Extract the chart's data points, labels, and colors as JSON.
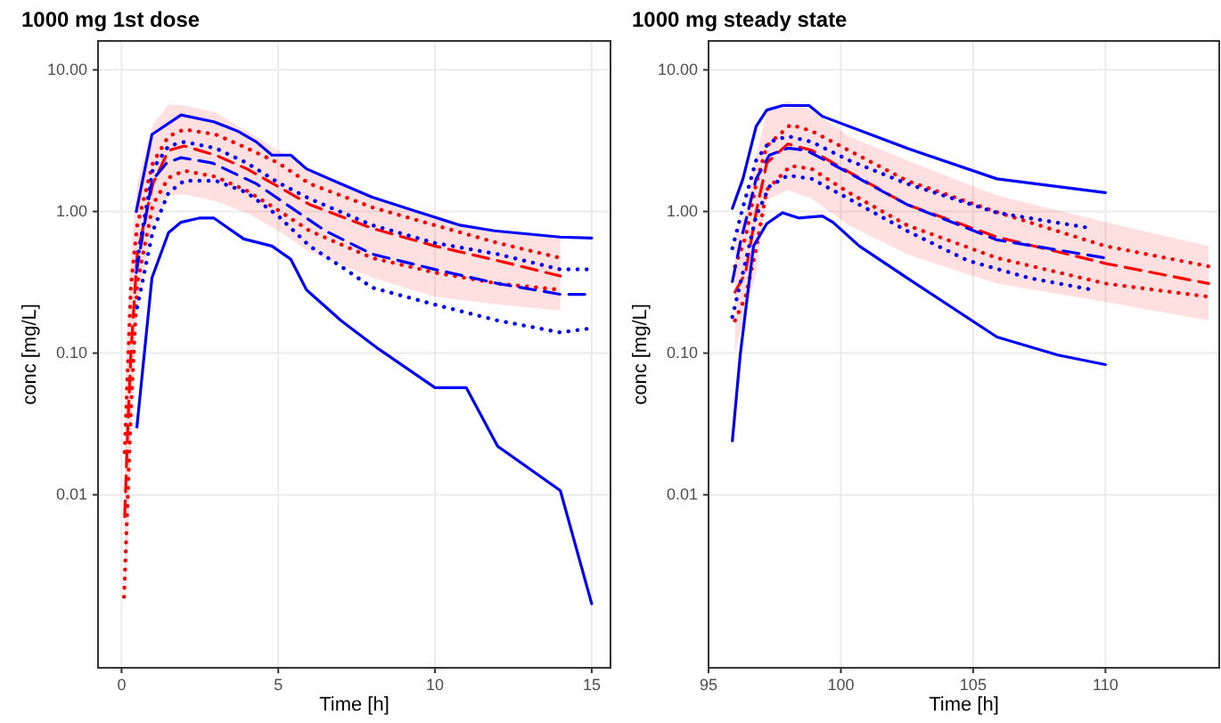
{
  "chart_data": [
    {
      "type": "line",
      "title": "1000 mg 1st dose",
      "xlabel": "Time [h]",
      "ylabel": "conc [mg/L]",
      "log": "y",
      "grid": true,
      "xlim": [
        -0.75,
        15.6
      ],
      "xticks": [
        0,
        5,
        10,
        15
      ],
      "ylim": [
        0.0006,
        16
      ],
      "yticks": [
        0.01,
        {
          "value": 0.1,
          "label": "0.10"
        },
        {
          "value": 1,
          "label": "1.00"
        },
        {
          "value": 10,
          "label": "10.00"
        }
      ],
      "series": [
        {
          "color": "#ff0000",
          "line_style": "dashed",
          "x": [
            0.1,
            0.2,
            0.3,
            0.5,
            1,
            1.5,
            2,
            3,
            4,
            5,
            6,
            8,
            10,
            12,
            14
          ],
          "values": [
            0.007,
            0.03,
            0.1,
            0.5,
            1.57,
            2.7,
            2.9,
            2.5,
            2.0,
            1.5,
            1.12,
            0.76,
            0.57,
            0.45,
            0.35
          ],
          "upper": [
            0.05,
            0.2,
            0.5,
            1.57,
            4.1,
            5.7,
            5.6,
            5.0,
            3.7,
            2.7,
            2.0,
            1.23,
            0.88,
            0.73,
            0.66
          ],
          "lower": [
            0.0015,
            0.004,
            0.02,
            0.21,
            0.8,
            1.3,
            1.32,
            1.18,
            0.98,
            0.73,
            0.52,
            0.34,
            0.25,
            0.22,
            0.2
          ]
        },
        {
          "color": "#ff0000",
          "line_style": "dotted",
          "x": [
            0.1,
            0.3,
            0.5,
            1,
            1.5,
            2,
            3,
            4,
            5,
            6,
            8,
            10,
            12,
            14
          ],
          "values": [
            0.02,
            0.3,
            0.8,
            2.2,
            3.4,
            3.8,
            3.5,
            2.8,
            2.2,
            1.57,
            1.07,
            0.8,
            0.6,
            0.47
          ]
        },
        {
          "color": "#ff0000",
          "line_style": "dotted",
          "x": [
            0.08,
            0.3,
            0.5,
            1,
            1.5,
            2,
            3,
            4,
            5,
            6,
            8,
            10,
            12,
            14
          ],
          "values": [
            0.0019,
            0.04,
            0.31,
            1.12,
            1.73,
            1.94,
            1.76,
            1.4,
            1.02,
            0.73,
            0.47,
            0.37,
            0.31,
            0.28
          ]
        },
        {
          "color": "#0000ff",
          "line_style": "solid",
          "x": [
            0.47,
            0.97,
            1.9,
            2.94,
            3.7,
            4.3,
            4.8,
            5.4,
            5.9,
            6.9,
            8.0,
            9.3,
            10.8,
            11.9,
            14,
            15
          ],
          "values": [
            1.0,
            3.5,
            4.8,
            4.3,
            3.7,
            3.1,
            2.5,
            2.5,
            2.0,
            1.6,
            1.26,
            1.02,
            0.8,
            0.73,
            0.66,
            0.65
          ]
        },
        {
          "color": "#0000ff",
          "line_style": "solid",
          "x": [
            0.49,
            0.97,
            1.5,
            1.9,
            2.5,
            2.94,
            3.9,
            4.8,
            5.4,
            5.9,
            7.0,
            8.2,
            10,
            11,
            12,
            14,
            15
          ],
          "values": [
            0.03,
            0.34,
            0.71,
            0.84,
            0.9,
            0.9,
            0.64,
            0.57,
            0.46,
            0.28,
            0.17,
            0.107,
            0.057,
            0.057,
            0.022,
            0.0107,
            0.0017
          ]
        },
        {
          "color": "#0000ff",
          "line_style": "dashed",
          "x": [
            0.47,
            0.97,
            1.44,
            1.9,
            2.9,
            4.3,
            5.4,
            6.5,
            8,
            10,
            12,
            14,
            15
          ],
          "values": [
            0.37,
            1.65,
            2.2,
            2.4,
            2.2,
            1.57,
            1.07,
            0.73,
            0.5,
            0.39,
            0.31,
            0.26,
            0.26
          ]
        },
        {
          "color": "#0000ff",
          "line_style": "dotted",
          "x": [
            0.5,
            1,
            1.5,
            2,
            3,
            4,
            5,
            6,
            8,
            10,
            12,
            14,
            15
          ],
          "values": [
            0.45,
            2.0,
            2.9,
            3.1,
            2.8,
            2.2,
            1.6,
            1.23,
            0.8,
            0.6,
            0.5,
            0.39,
            0.39
          ]
        },
        {
          "color": "#0000ff",
          "line_style": "dotted",
          "x": [
            0.5,
            1,
            1.5,
            2,
            3,
            4,
            5,
            6,
            7,
            8,
            10,
            12,
            14,
            15
          ],
          "values": [
            0.21,
            0.73,
            1.36,
            1.65,
            1.65,
            1.36,
            0.93,
            0.57,
            0.41,
            0.29,
            0.22,
            0.17,
            0.14,
            0.15
          ]
        }
      ]
    },
    {
      "type": "line",
      "title": "1000 mg steady state",
      "xlabel": "Time [h]",
      "ylabel": "conc [mg/L]",
      "log": "y",
      "grid": true,
      "xlim": [
        95,
        114.3
      ],
      "xticks": [
        95,
        100,
        105,
        110
      ],
      "ylim": [
        0.0006,
        16
      ],
      "yticks": [
        0.01,
        {
          "value": 0.1,
          "label": "0.10"
        },
        {
          "value": 1,
          "label": "1.00"
        },
        {
          "value": 10,
          "label": "10.00"
        }
      ],
      "series": [
        {
          "color": "#ff0000",
          "line_style": "dashed",
          "x": [
            96,
            96.4,
            96.8,
            97.2,
            98,
            98.9,
            100.3,
            102.5,
            105.9,
            110,
            113.9
          ],
          "values": [
            0.27,
            0.37,
            0.99,
            2.2,
            3.0,
            2.7,
            1.9,
            1.12,
            0.66,
            0.43,
            0.31
          ],
          "upper": [
            0.66,
            1.0,
            2.5,
            5.0,
            6.0,
            5.2,
            3.4,
            2.3,
            1.3,
            0.84,
            0.57
          ],
          "lower": [
            0.1,
            0.2,
            0.37,
            1.2,
            1.42,
            1.23,
            0.8,
            0.5,
            0.31,
            0.23,
            0.17
          ]
        },
        {
          "color": "#ff0000",
          "line_style": "dotted",
          "x": [
            96,
            96.4,
            96.8,
            97.2,
            98.1,
            98.9,
            100.3,
            102.5,
            105.9,
            110,
            113.9
          ],
          "values": [
            0.41,
            0.66,
            1.57,
            2.9,
            4.1,
            3.7,
            2.7,
            1.65,
            0.99,
            0.57,
            0.41
          ]
        },
        {
          "color": "#ff0000",
          "line_style": "dotted",
          "x": [
            96,
            96.4,
            96.8,
            97.2,
            98.1,
            98.9,
            100.3,
            102.5,
            105.9,
            110,
            113.9
          ],
          "values": [
            0.17,
            0.25,
            0.55,
            1.42,
            2.1,
            2.0,
            1.36,
            0.8,
            0.47,
            0.31,
            0.25
          ]
        },
        {
          "color": "#0000ff",
          "line_style": "solid",
          "x": [
            95.9,
            96.3,
            96.8,
            97.2,
            97.8,
            98.8,
            99.3,
            102.5,
            105.9,
            110
          ],
          "values": [
            1.05,
            1.7,
            4.0,
            5.2,
            5.6,
            5.6,
            4.7,
            2.8,
            1.7,
            1.36
          ]
        },
        {
          "color": "#0000ff",
          "line_style": "solid",
          "x": [
            95.9,
            96.2,
            96.7,
            97.2,
            97.8,
            98.4,
            99.3,
            99.7,
            100.7,
            102.5,
            105.9,
            108.2,
            110
          ],
          "values": [
            0.024,
            0.098,
            0.57,
            0.82,
            0.98,
            0.9,
            0.93,
            0.84,
            0.57,
            0.34,
            0.13,
            0.097,
            0.083
          ]
        },
        {
          "color": "#0000ff",
          "line_style": "dashed",
          "x": [
            95.9,
            96.2,
            96.8,
            97.3,
            98,
            98.7,
            99.8,
            102.5,
            105.9,
            110
          ],
          "values": [
            0.32,
            0.6,
            1.7,
            2.5,
            2.8,
            2.7,
            2.1,
            1.12,
            0.63,
            0.47
          ]
        },
        {
          "color": "#0000ff",
          "line_style": "dotted",
          "x": [
            95.9,
            96.3,
            96.8,
            97.3,
            98,
            98.9,
            100.3,
            102.5,
            105.9,
            109.5
          ],
          "values": [
            0.55,
            1.07,
            2.3,
            3.1,
            3.4,
            3.1,
            2.3,
            1.57,
            0.98,
            0.76
          ]
        },
        {
          "color": "#0000ff",
          "line_style": "dotted",
          "x": [
            95.9,
            96.3,
            96.8,
            97.3,
            98,
            98.9,
            100.3,
            102.5,
            104.8,
            107.1,
            109.5
          ],
          "values": [
            0.18,
            0.37,
            0.93,
            1.5,
            1.8,
            1.7,
            1.23,
            0.73,
            0.45,
            0.34,
            0.28
          ]
        }
      ]
    }
  ]
}
